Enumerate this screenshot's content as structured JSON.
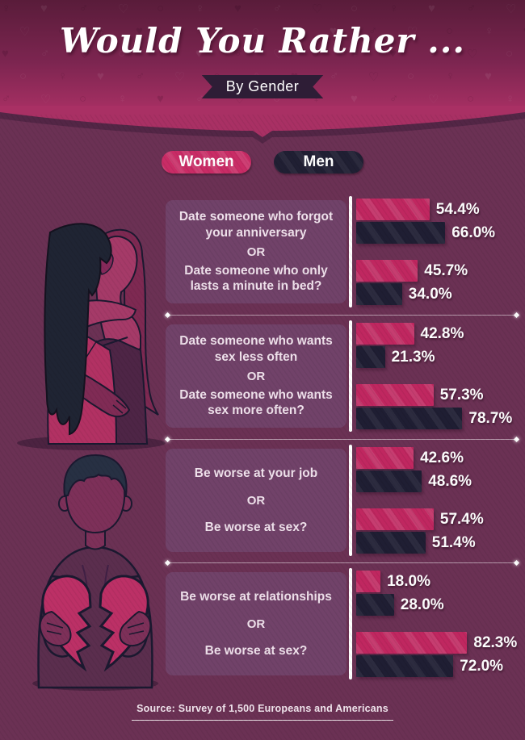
{
  "header": {
    "title": "Would You Rather ...",
    "ribbon_label": "By Gender"
  },
  "legend": {
    "women_label": "Women",
    "men_label": "Men",
    "women_color": "#c92c66",
    "men_color": "#201f33"
  },
  "chart_data": {
    "type": "bar",
    "orientation": "horizontal",
    "unit": "percent",
    "series_names": [
      "Women",
      "Men"
    ],
    "or_label": "OR",
    "xlim": [
      0,
      100
    ],
    "colors": {
      "women_bar": "#c02760",
      "men_bar": "#1f1e33"
    },
    "questions": [
      {
        "options": [
          {
            "label": "Date someone who forgot your anniversary",
            "women": 54.4,
            "men": 66.0,
            "women_display": "54.4%",
            "men_display": "66.0%"
          },
          {
            "label": "Date someone who only lasts a minute in bed?",
            "women": 45.7,
            "men": 34.0,
            "women_display": "45.7%",
            "men_display": "34.0%"
          }
        ]
      },
      {
        "options": [
          {
            "label": "Date someone who wants sex less often",
            "women": 42.8,
            "men": 21.3,
            "women_display": "42.8%",
            "men_display": "21.3%"
          },
          {
            "label": "Date someone who wants sex more often?",
            "women": 57.3,
            "men": 78.7,
            "women_display": "57.3%",
            "men_display": "78.7%"
          }
        ]
      },
      {
        "options": [
          {
            "label": "Be worse at your job",
            "women": 42.6,
            "men": 48.6,
            "women_display": "42.6%",
            "men_display": "48.6%"
          },
          {
            "label": "Be worse at sex?",
            "women": 57.4,
            "men": 51.4,
            "women_display": "57.4%",
            "men_display": "51.4%"
          }
        ]
      },
      {
        "options": [
          {
            "label": "Be worse at relationships",
            "women": 18.0,
            "men": 28.0,
            "women_display": "18.0%",
            "men_display": "28.0%"
          },
          {
            "label": "Be worse at sex?",
            "women": 82.3,
            "men": 72.0,
            "women_display": "82.3%",
            "men_display": "72.0%"
          }
        ]
      }
    ]
  },
  "footer": {
    "source": "Source: Survey of 1,500 Europeans and Americans"
  },
  "illustrations": [
    {
      "name": "women-kissing"
    },
    {
      "name": "man-breaking-heart"
    }
  ]
}
